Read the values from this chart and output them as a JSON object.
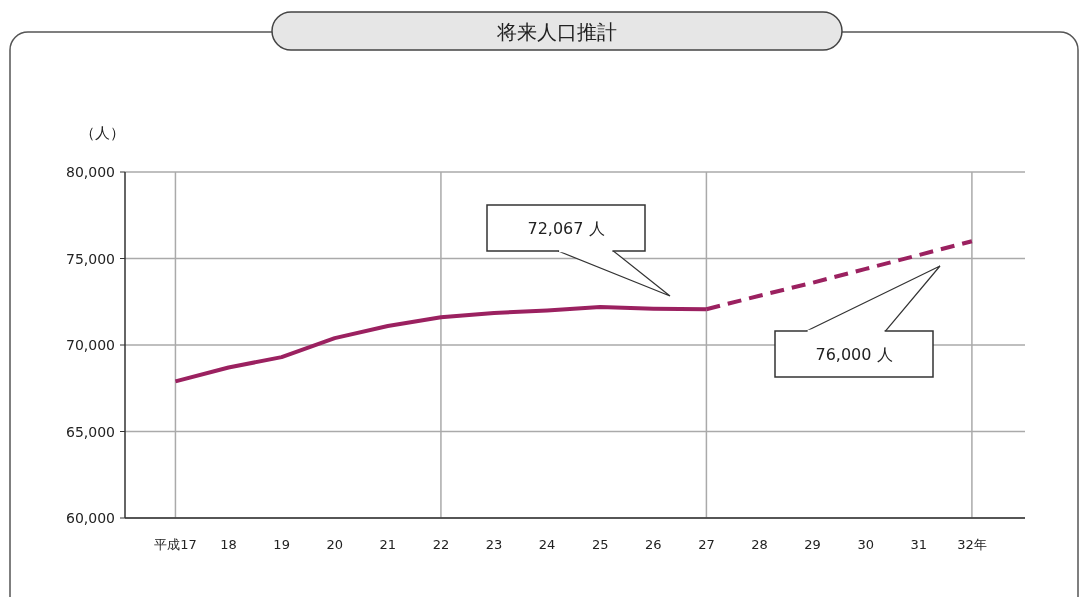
{
  "chart_data": {
    "type": "line",
    "title": "将来人口推計",
    "ylabel": "（人）",
    "series": [
      {
        "color": "#9b2160",
        "line_style": "solid",
        "x": [
          17,
          18,
          19,
          20,
          21,
          22,
          23,
          24,
          25,
          26,
          27
        ],
        "values": [
          67900,
          68700,
          69300,
          70400,
          71100,
          71600,
          71850,
          72000,
          72200,
          72100,
          72067
        ]
      },
      {
        "color": "#9b2160",
        "line_style": "dashed",
        "x": [
          27,
          28,
          29,
          30,
          31,
          32
        ],
        "values": [
          72067,
          72850,
          73600,
          74400,
          75200,
          76000
        ]
      }
    ],
    "xlim": [
      16.05,
      33
    ],
    "xticks": [
      {
        "value": 17,
        "label": "平成17"
      },
      18,
      19,
      20,
      21,
      22,
      23,
      24,
      25,
      26,
      27,
      28,
      29,
      30,
      31,
      {
        "value": 32,
        "label": "32年"
      }
    ],
    "ylim": [
      60000,
      80000
    ],
    "yticks": [
      {
        "value": 60000,
        "label": "60,000"
      },
      {
        "value": 65000,
        "label": "65,000"
      },
      {
        "value": 70000,
        "label": "70,000"
      },
      {
        "value": 75000,
        "label": "75,000"
      },
      {
        "value": 80000,
        "label": "80,000"
      }
    ],
    "grid": "y",
    "ref_lines": [
      {
        "axis": "x",
        "value": 17,
        "color": "#aaaaaa"
      },
      {
        "axis": "x",
        "value": 22,
        "color": "#aaaaaa"
      },
      {
        "axis": "x",
        "value": 27,
        "color": "#aaaaaa"
      },
      {
        "axis": "x",
        "value": 32,
        "color": "#aaaaaa"
      }
    ],
    "annotations": [
      "72,067 人",
      "76,000 人"
    ]
  }
}
